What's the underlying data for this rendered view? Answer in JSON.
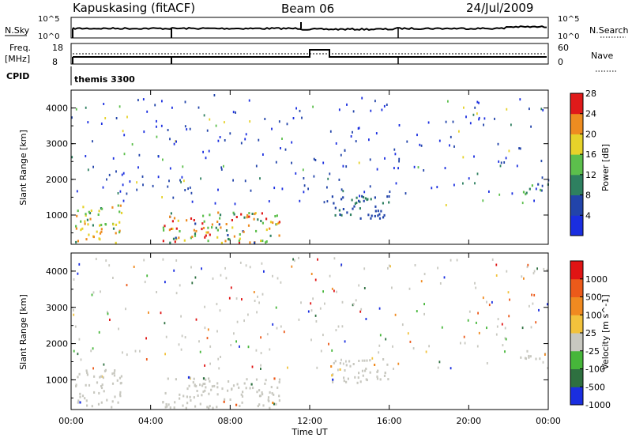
{
  "header": {
    "station": "Kapuskasing (fitACF)",
    "beam": "Beam 06",
    "date": "24/Jul/2009"
  },
  "strip_labels": {
    "nsky": "N.Sky",
    "nsky_ticks": [
      "10^5",
      "10^0"
    ],
    "nsearch": "N.Search",
    "nsearch_ticks": [
      "10^5",
      "10^0"
    ],
    "freq_line1": "Freq.",
    "freq_line2": "[MHz]",
    "freq_ticks": [
      "18",
      "8"
    ],
    "nave": "Nave",
    "nave_ticks": [
      "60",
      "0"
    ],
    "cpid": "CPID",
    "cpid_value": "themis 3300"
  },
  "chart_data": [
    {
      "type": "heatmap",
      "panel": "power",
      "xlabel": "",
      "ylabel": "Slant Range [km]",
      "xlim": [
        0,
        24
      ],
      "ylim": [
        180,
        4500
      ],
      "yticks": [
        "1000",
        "2000",
        "3000",
        "4000"
      ],
      "colorbar": {
        "label": "Power [dB]",
        "ticks": [
          "4",
          "8",
          "12",
          "16",
          "20",
          "24",
          "28"
        ],
        "colors": [
          "#1a2ee0",
          "#2244aa",
          "#2e8060",
          "#5cbf4c",
          "#e6d22a",
          "#ee8c20",
          "#e01a1a"
        ]
      },
      "echo_regions": [
        {
          "t": [
            0.2,
            2.5
          ],
          "r": [
            250,
            1300
          ],
          "power_db": [
            10,
            24
          ]
        },
        {
          "t": [
            4.5,
            10.5
          ],
          "r": [
            250,
            1100
          ],
          "power_db": [
            6,
            28
          ]
        },
        {
          "t": [
            13.0,
            16.0
          ],
          "r": [
            900,
            1600
          ],
          "power_db": [
            4,
            10
          ]
        },
        {
          "t": [
            22.5,
            24.0
          ],
          "r": [
            1600,
            1900
          ],
          "power_db": [
            6,
            18
          ]
        }
      ]
    },
    {
      "type": "heatmap",
      "panel": "velocity",
      "xlabel": "Time UT",
      "ylabel": "Slant Range [km]",
      "xlim": [
        0,
        24
      ],
      "ylim": [
        180,
        4500
      ],
      "xticks": [
        "00:00",
        "04:00",
        "08:00",
        "12:00",
        "16:00",
        "20:00",
        "00:00"
      ],
      "yticks": [
        "1000",
        "2000",
        "3000",
        "4000"
      ],
      "colorbar": {
        "label": "Velocity [m s^-1]",
        "ticks": [
          "1000",
          "500",
          "100",
          "25",
          "-25",
          "-100",
          "-500",
          "-1000"
        ],
        "colors": [
          "#1a2ee0",
          "#2e7040",
          "#46b63a",
          "#c8c8c0",
          "#f2c23c",
          "#f08a20",
          "#ec5a1a",
          "#e01414"
        ]
      },
      "echo_regions": [
        {
          "t": [
            0.2,
            2.5
          ],
          "r": [
            250,
            1300
          ],
          "velocity": [
            -25,
            25
          ]
        },
        {
          "t": [
            4.5,
            10.5
          ],
          "r": [
            250,
            1100
          ],
          "velocity": [
            -25,
            25
          ]
        },
        {
          "t": [
            13.0,
            16.0
          ],
          "r": [
            900,
            1600
          ],
          "velocity": [
            -25,
            25
          ]
        },
        {
          "t": [
            22.5,
            24.0
          ],
          "r": [
            1600,
            1900
          ],
          "velocity": [
            -25,
            25
          ]
        }
      ]
    }
  ]
}
